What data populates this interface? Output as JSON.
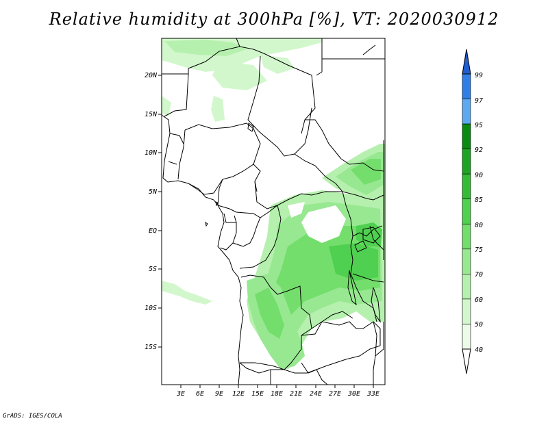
{
  "title": "Relative humidity at 300hPa [%], VT: 2020030912",
  "credit": "GrADS: IGES/COLA",
  "lat_ticks": [
    "20N",
    "15N",
    "10N",
    "5N",
    "EQ",
    "5S",
    "10S",
    "15S"
  ],
  "lon_ticks": [
    "3E",
    "6E",
    "9E",
    "12E",
    "15E",
    "18E",
    "21E",
    "24E",
    "27E",
    "30E",
    "33E"
  ],
  "colorbar": {
    "labels": [
      "99",
      "97",
      "95",
      "92",
      "90",
      "85",
      "80",
      "75",
      "70",
      "60",
      "50",
      "40"
    ],
    "colors": [
      "#1e5ed0",
      "#2f7fe6",
      "#5ea8f0",
      "#0a8a12",
      "#1fa325",
      "#33bb38",
      "#50d050",
      "#74de6c",
      "#98e892",
      "#b6f0ae",
      "#d2f7cc",
      "#ebfbe7"
    ]
  }
}
